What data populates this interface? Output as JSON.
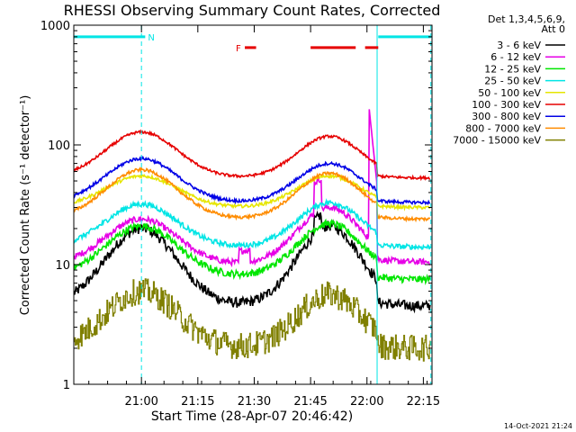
{
  "chart_data": {
    "type": "line",
    "title": "RHESSI Observing Summary Count Rates, Corrected",
    "xlabel": "Start Time (28-Apr-07 20:46:42)",
    "ylabel": "Corrected Count Rate (s⁻¹ detector⁻¹)",
    "y_scale": "log",
    "ylim": [
      1,
      1000
    ],
    "xlim_minutes": [
      -4,
      91.3
    ],
    "x_ticks": [
      {
        "label": "21:00",
        "minutes": 14
      },
      {
        "label": "21:15",
        "minutes": 29
      },
      {
        "label": "21:30",
        "minutes": 44
      },
      {
        "label": "21:45",
        "minutes": 59
      },
      {
        "label": "22:00",
        "minutes": 74
      },
      {
        "label": "22:15",
        "minutes": 89
      }
    ],
    "y_ticks": [
      {
        "label": "1",
        "value": 1
      },
      {
        "label": "10",
        "value": 10
      },
      {
        "label": "100",
        "value": 100
      },
      {
        "label": "1000",
        "value": 1000
      }
    ],
    "legend_title": [
      "Det 1,3,4,5,6,9,",
      "Att 0"
    ],
    "legend_position": "top-right outside",
    "flag_bars": [
      {
        "label": "N",
        "color": "#00e5e5",
        "start_min": -4,
        "end_min": 15,
        "value": 800
      },
      {
        "label": "",
        "color": "#00e5e5",
        "start_min": 77,
        "end_min": 91,
        "value": 800
      },
      {
        "label": "F",
        "color": "#e60000",
        "segments": [
          [
            41.5,
            44.5
          ],
          [
            59,
            71
          ],
          [
            73.5,
            77
          ]
        ],
        "value": 650
      }
    ],
    "vertical_lines": [
      {
        "minutes": 14,
        "style": "dashed",
        "color": "#00e5e5"
      },
      {
        "minutes": 76.7,
        "style": "solid",
        "color": "#00e5e5"
      },
      {
        "minutes": 91,
        "style": "dashed",
        "color": "#00e5e5"
      }
    ],
    "series": [
      {
        "name": "3 - 6 keV",
        "color": "#000000",
        "base": 4.5,
        "peak1": 20,
        "peak2": 21,
        "tail": 4.5,
        "noise": 0.1
      },
      {
        "name": "6 - 12 keV",
        "color": "#e600e6",
        "base": 10,
        "peak1": 24,
        "peak2": 30,
        "tail": 10.5,
        "noise": 0.06
      },
      {
        "name": "12 - 25 keV",
        "color": "#00e600",
        "base": 8,
        "peak1": 21,
        "peak2": 22,
        "tail": 7.5,
        "noise": 0.07
      },
      {
        "name": "25 - 50 keV",
        "color": "#00e5e5",
        "base": 14,
        "peak1": 32,
        "peak2": 33,
        "tail": 14,
        "noise": 0.05
      },
      {
        "name": "50 - 100 keV",
        "color": "#e6e600",
        "base": 30,
        "peak1": 55,
        "peak2": 55,
        "tail": 30,
        "noise": 0.03
      },
      {
        "name": "100 - 300 keV",
        "color": "#e60000",
        "base": 53,
        "peak1": 128,
        "peak2": 118,
        "tail": 53,
        "noise": 0.025
      },
      {
        "name": "300 - 800 keV",
        "color": "#0000e6",
        "base": 33,
        "peak1": 77,
        "peak2": 70,
        "tail": 33,
        "noise": 0.03
      },
      {
        "name": "800 - 7000 keV",
        "color": "#ff8c00",
        "base": 24,
        "peak1": 62,
        "peak2": 58,
        "tail": 24,
        "noise": 0.03
      },
      {
        "name": "7000 - 15000 keV",
        "color": "#808000",
        "base": 2,
        "peak1": 6,
        "peak2": 5.6,
        "tail": 2,
        "noise": 0.25
      }
    ]
  },
  "footer": {
    "timestamp": "14-Oct-2021 21:24"
  }
}
